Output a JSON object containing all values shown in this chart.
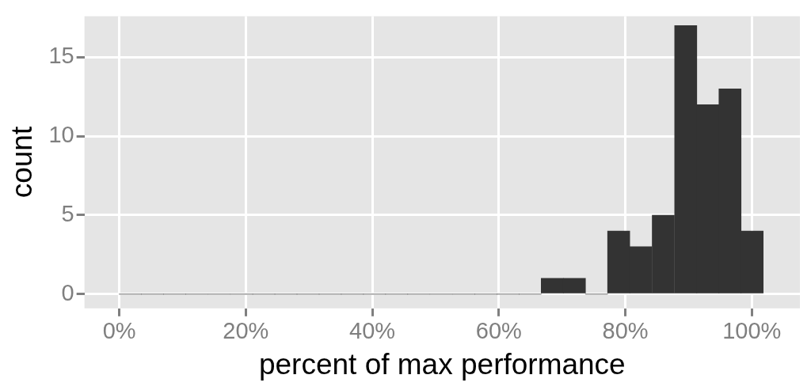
{
  "chart_data": {
    "type": "histogram",
    "xlabel": "percent of max performance",
    "ylabel": "count",
    "bins": [
      0,
      3.5,
      7.0,
      10.5,
      14.0,
      17.6,
      21.1,
      24.6,
      28.1,
      31.6,
      35.1,
      38.6,
      42.1,
      45.6,
      49.1,
      52.7,
      56.2,
      59.7,
      63.2,
      66.7,
      70.2,
      73.7,
      77.2,
      80.7,
      84.2,
      87.8,
      91.3,
      94.8,
      98.3,
      101.8
    ],
    "values": [
      0,
      0,
      0,
      0,
      0,
      0,
      0,
      0,
      0,
      0,
      0,
      0,
      0,
      0,
      0,
      0,
      0,
      0,
      0,
      1,
      1,
      0,
      4,
      3,
      5,
      17,
      12,
      13,
      4
    ],
    "color": "#333333",
    "xlim": [
      -5.5,
      107.6
    ],
    "ylim": [
      -0.9,
      17.6
    ],
    "xticks": [
      {
        "value": 0,
        "label": "0%"
      },
      {
        "value": 20,
        "label": "20%"
      },
      {
        "value": 40,
        "label": "40%"
      },
      {
        "value": 60,
        "label": "60%"
      },
      {
        "value": 80,
        "label": "80%"
      },
      {
        "value": 100,
        "label": "100%"
      }
    ],
    "yticks": [
      0,
      5,
      10,
      15
    ],
    "grid": true,
    "legend": false
  }
}
